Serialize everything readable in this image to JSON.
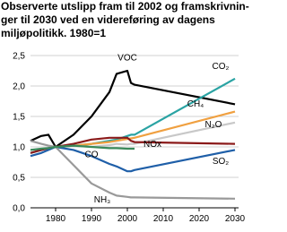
{
  "chart_data": {
    "type": "line",
    "title_lines": [
      "Observerte utslipp fram til 2002 og framskrivnin-",
      "ger til 2030 ved en videreføring av dagens",
      "miljøpolitikk. 1980=1"
    ],
    "x": [
      1973,
      1976,
      1978,
      1980,
      1985,
      1990,
      1995,
      1997,
      2000,
      2001,
      2002,
      2030
    ],
    "series": [
      {
        "name": "VOC",
        "color": "#000000",
        "values": [
          1.1,
          1.18,
          1.2,
          1.0,
          1.2,
          1.5,
          1.9,
          2.2,
          2.25,
          2.05,
          2.02,
          1.7
        ]
      },
      {
        "name": "CO₂",
        "color": "#2aa3a3",
        "values": [
          0.9,
          0.95,
          0.98,
          1.0,
          1.02,
          1.05,
          1.1,
          1.12,
          1.18,
          1.2,
          1.2,
          2.12
        ]
      },
      {
        "name": "CH₄",
        "color": "#f0a040",
        "values": [
          null,
          null,
          null,
          1.0,
          1.02,
          1.05,
          1.08,
          1.1,
          1.13,
          1.14,
          1.15,
          1.58
        ]
      },
      {
        "name": "N₂O",
        "color": "#c8c8c8",
        "values": [
          null,
          null,
          null,
          1.0,
          1.02,
          1.0,
          1.03,
          1.05,
          1.04,
          1.05,
          1.05,
          1.4
        ]
      },
      {
        "name": "NOx",
        "color": "#8b1a1a",
        "values": [
          0.9,
          0.95,
          0.98,
          1.0,
          1.05,
          1.12,
          1.15,
          1.15,
          1.15,
          1.1,
          1.08,
          1.05
        ]
      },
      {
        "name": "CO",
        "color": "#1f5fa8",
        "values": [
          0.85,
          0.9,
          0.95,
          1.0,
          0.95,
          0.85,
          0.72,
          0.68,
          0.6,
          0.6,
          0.62,
          0.95
        ]
      },
      {
        "name": "SO₂",
        "color": "#999999",
        "values": [
          1.1,
          1.05,
          1.02,
          1.0,
          0.7,
          0.4,
          0.25,
          0.2,
          0.18,
          0.17,
          0.17,
          0.15
        ]
      },
      {
        "name": "NH₃",
        "color": "#3a8a5a",
        "values": [
          0.95,
          0.97,
          0.98,
          1.0,
          1.02,
          1.0,
          0.98,
          0.98,
          0.97,
          0.97,
          0.97,
          null
        ]
      }
    ],
    "xlim": [
      1973,
      2031
    ],
    "xticks": [
      1980,
      1990,
      2000,
      2010,
      2020,
      2030
    ],
    "ylim": [
      0,
      2.5
    ],
    "yticks": [
      {
        "value": 0,
        "label": "0,0"
      },
      {
        "value": 0.5,
        "label": "0,5"
      },
      {
        "value": 1,
        "label": "1,0"
      },
      {
        "value": 1.5,
        "label": "1,5"
      },
      {
        "value": 2,
        "label": "2,0"
      },
      {
        "value": 2.5,
        "label": "2,5"
      }
    ],
    "grid": true
  }
}
